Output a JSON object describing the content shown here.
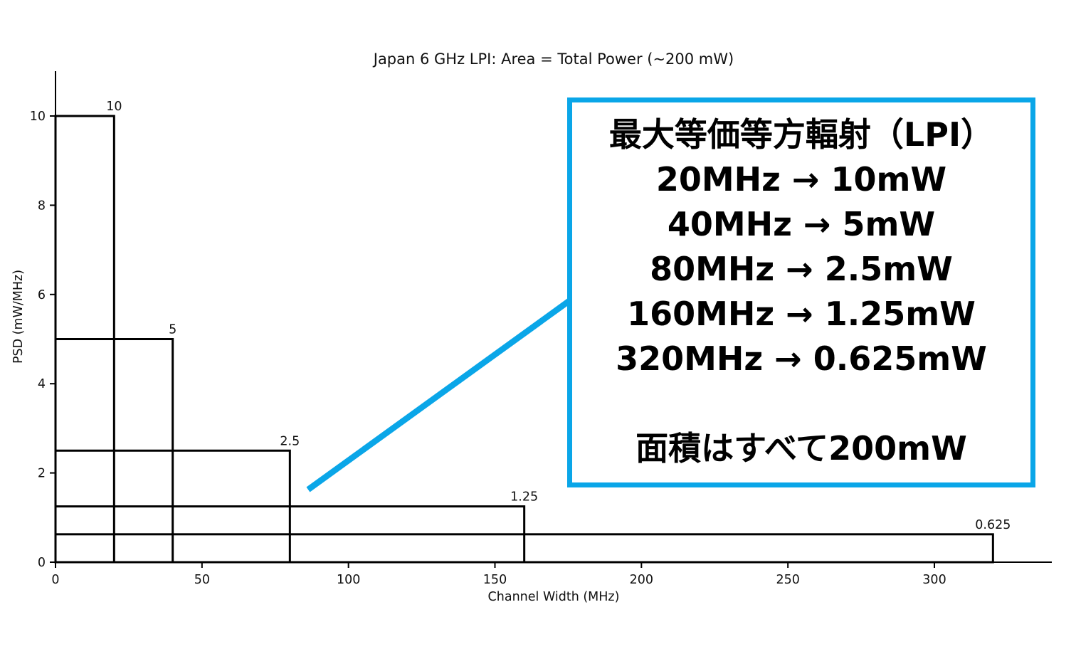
{
  "chart_data": {
    "type": "bar",
    "title": "Japan 6 GHz LPI: Area = Total Power (~200 mW)",
    "xlabel": "Channel Width (MHz)",
    "ylabel": "PSD (mW/MHz)",
    "xlim": [
      0,
      340
    ],
    "ylim": [
      0,
      11
    ],
    "x_ticks": [
      0,
      50,
      100,
      150,
      200,
      250,
      300
    ],
    "y_ticks": [
      0,
      2,
      4,
      6,
      8,
      10
    ],
    "grid": false,
    "edge_color": "#000000",
    "fill": "none",
    "note": "nested rectangles anchored at origin; each rectangle area equals ~200 mW total power",
    "rectangles": [
      {
        "channel_width_mhz": 20,
        "psd_mw_per_mhz": 10,
        "label": "10"
      },
      {
        "channel_width_mhz": 40,
        "psd_mw_per_mhz": 5,
        "label": "5"
      },
      {
        "channel_width_mhz": 80,
        "psd_mw_per_mhz": 2.5,
        "label": "2.5"
      },
      {
        "channel_width_mhz": 160,
        "psd_mw_per_mhz": 1.25,
        "label": "1.25"
      },
      {
        "channel_width_mhz": 320,
        "psd_mw_per_mhz": 0.625,
        "label": "0.625"
      }
    ]
  },
  "annotation": {
    "border_color": "#0aa6e8",
    "background": "#ffffff",
    "text_color": "#000000",
    "title_line": "最大等価等方輻射（LPI）",
    "lines": [
      "20MHz → 10mW",
      "40MHz → 5mW",
      "80MHz → 2.5mW",
      "160MHz → 1.25mW",
      "320MHz → 0.625mW"
    ],
    "footer_line": "面積はすべて200mW"
  },
  "callout": {
    "color": "#0aa6e8"
  }
}
